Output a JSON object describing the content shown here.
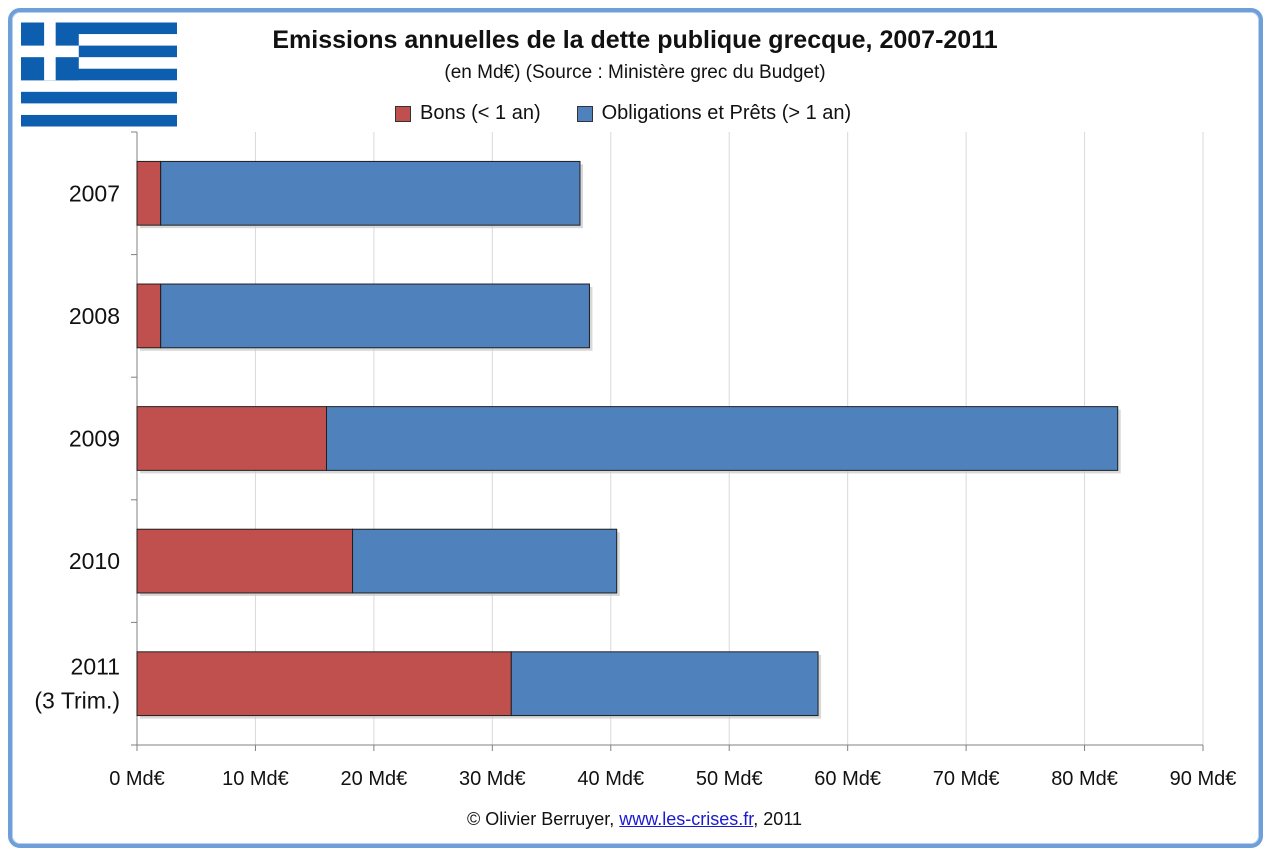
{
  "chart_data": {
    "type": "bar",
    "orientation": "horizontal",
    "stacked": true,
    "title": "Emissions annuelles de la dette publique grecque, 2007-2011",
    "subtitle": "(en Md€) (Source : Ministère grec du Budget)",
    "categories": [
      {
        "lines": [
          "2007"
        ]
      },
      {
        "lines": [
          "2008"
        ]
      },
      {
        "lines": [
          "2009"
        ]
      },
      {
        "lines": [
          "2010"
        ]
      },
      {
        "lines": [
          "2011",
          "(3 Trim.)"
        ]
      }
    ],
    "series": [
      {
        "name": "Bons (< 1 an)",
        "color": "#c0504d",
        "values": [
          2,
          2,
          16,
          18.2,
          31.6
        ]
      },
      {
        "name": "Obligations et Prêts (> 1 an)",
        "color": "#4f81bd",
        "values": [
          35.4,
          36.2,
          66.8,
          22.3,
          25.9
        ]
      }
    ],
    "xlim": [
      0,
      90
    ],
    "xticks": [
      0,
      10,
      20,
      30,
      40,
      50,
      60,
      70,
      80,
      90
    ],
    "tick_suffix": " Md€",
    "grid": true,
    "legend_position": "top"
  },
  "footer": {
    "prefix": "© Olivier Berruyer, ",
    "link": "www.les-crises.fr",
    "suffix": ",  2011"
  }
}
